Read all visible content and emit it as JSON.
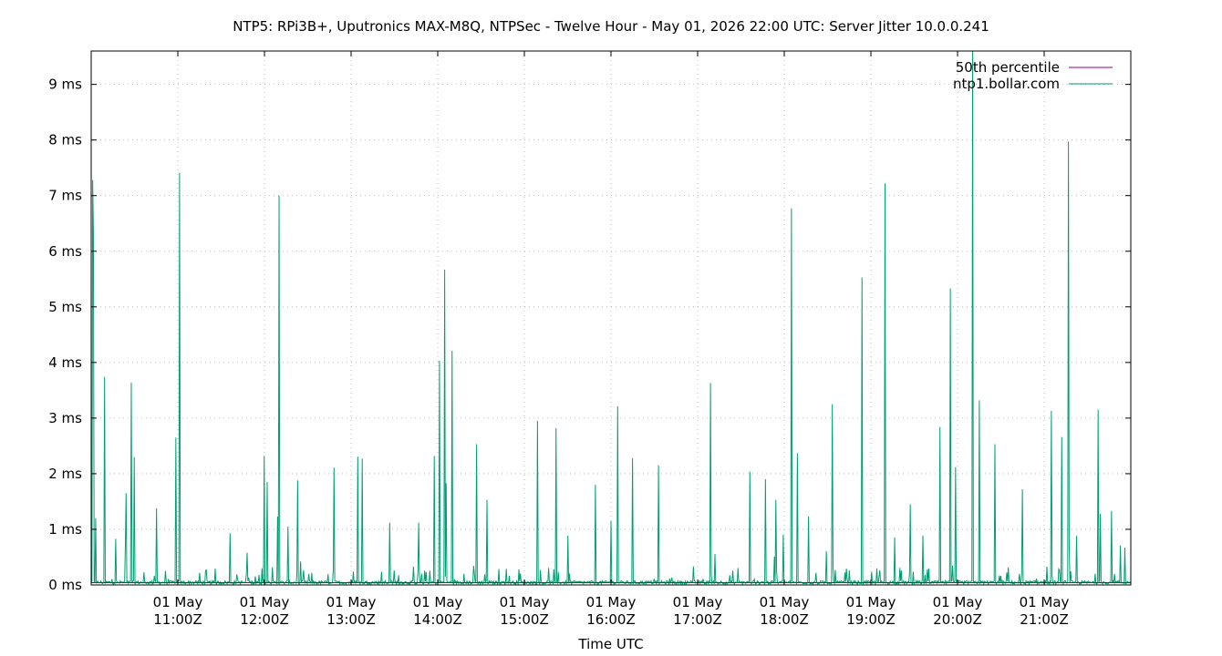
{
  "chart_data": {
    "type": "line",
    "title": "NTP5: RPi3B+, Uputronics MAX-M8Q, NTPSec - Twelve Hour - May 01, 2026 22:00 UTC: Server Jitter 10.0.0.241",
    "xlabel": "Time UTC",
    "ylabel": "",
    "x_range": [
      "2026-05-01T10:00Z",
      "2026-05-01T22:00Z"
    ],
    "ylim": [
      0,
      9.6
    ],
    "y_unit": "ms",
    "grid": true,
    "legend_position": "top-right",
    "y_ticks": [
      {
        "value": 0,
        "label": "0 ms"
      },
      {
        "value": 1,
        "label": "1 ms"
      },
      {
        "value": 2,
        "label": "2 ms"
      },
      {
        "value": 3,
        "label": "3 ms"
      },
      {
        "value": 4,
        "label": "4 ms"
      },
      {
        "value": 5,
        "label": "5 ms"
      },
      {
        "value": 6,
        "label": "6 ms"
      },
      {
        "value": 7,
        "label": "7 ms"
      },
      {
        "value": 8,
        "label": "8 ms"
      },
      {
        "value": 9,
        "label": "9 ms"
      }
    ],
    "x_ticks": [
      {
        "hour": 11,
        "line1": "01 May",
        "line2": "11:00Z"
      },
      {
        "hour": 12,
        "line1": "01 May",
        "line2": "12:00Z"
      },
      {
        "hour": 13,
        "line1": "01 May",
        "line2": "13:00Z"
      },
      {
        "hour": 14,
        "line1": "01 May",
        "line2": "14:00Z"
      },
      {
        "hour": 15,
        "line1": "01 May",
        "line2": "15:00Z"
      },
      {
        "hour": 16,
        "line1": "01 May",
        "line2": "16:00Z"
      },
      {
        "hour": 17,
        "line1": "01 May",
        "line2": "17:00Z"
      },
      {
        "hour": 18,
        "line1": "01 May",
        "line2": "18:00Z"
      },
      {
        "hour": 19,
        "line1": "01 May",
        "line2": "19:00Z"
      },
      {
        "hour": 20,
        "line1": "01 May",
        "line2": "20:00Z"
      },
      {
        "hour": 21,
        "line1": "01 May",
        "line2": "21:00Z"
      }
    ],
    "series": [
      {
        "name": "50th percentile",
        "color": "#94008b",
        "value": 0.04
      },
      {
        "name": "ntp1.bollar.com",
        "color": "#009e73",
        "baseline": 0.05,
        "spikes": [
          {
            "hour": 10.02,
            "value": 7.28
          },
          {
            "hour": 10.03,
            "value": 6.3
          },
          {
            "hour": 10.05,
            "value": 1.2
          },
          {
            "hour": 10.15,
            "value": 3.74
          },
          {
            "hour": 10.28,
            "value": 0.83
          },
          {
            "hour": 10.4,
            "value": 1.65
          },
          {
            "hour": 10.46,
            "value": 3.64
          },
          {
            "hour": 10.5,
            "value": 2.3
          },
          {
            "hour": 10.75,
            "value": 1.38
          },
          {
            "hour": 10.98,
            "value": 2.65
          },
          {
            "hour": 11.02,
            "value": 7.41
          },
          {
            "hour": 11.6,
            "value": 0.93
          },
          {
            "hour": 11.8,
            "value": 0.58
          },
          {
            "hour": 12.0,
            "value": 2.32
          },
          {
            "hour": 12.03,
            "value": 1.85
          },
          {
            "hour": 12.15,
            "value": 1.23
          },
          {
            "hour": 12.17,
            "value": 7.0
          },
          {
            "hour": 12.27,
            "value": 1.05
          },
          {
            "hour": 12.38,
            "value": 1.88
          },
          {
            "hour": 12.8,
            "value": 2.11
          },
          {
            "hour": 13.08,
            "value": 2.31
          },
          {
            "hour": 13.13,
            "value": 2.27
          },
          {
            "hour": 13.45,
            "value": 1.12
          },
          {
            "hour": 13.78,
            "value": 1.12
          },
          {
            "hour": 13.96,
            "value": 2.32
          },
          {
            "hour": 14.02,
            "value": 4.03
          },
          {
            "hour": 14.08,
            "value": 5.67
          },
          {
            "hour": 14.1,
            "value": 1.83
          },
          {
            "hour": 14.17,
            "value": 4.21
          },
          {
            "hour": 14.45,
            "value": 2.53
          },
          {
            "hour": 14.57,
            "value": 1.53
          },
          {
            "hour": 15.15,
            "value": 2.95
          },
          {
            "hour": 15.37,
            "value": 2.82
          },
          {
            "hour": 15.82,
            "value": 1.8
          },
          {
            "hour": 16.0,
            "value": 1.15
          },
          {
            "hour": 16.08,
            "value": 3.21
          },
          {
            "hour": 16.25,
            "value": 2.28
          },
          {
            "hour": 16.55,
            "value": 2.15
          },
          {
            "hour": 17.15,
            "value": 3.63
          },
          {
            "hour": 17.6,
            "value": 2.04
          },
          {
            "hour": 17.78,
            "value": 1.9
          },
          {
            "hour": 17.9,
            "value": 1.53
          },
          {
            "hour": 18.08,
            "value": 6.77
          },
          {
            "hour": 18.15,
            "value": 2.37
          },
          {
            "hour": 18.28,
            "value": 1.23
          },
          {
            "hour": 18.55,
            "value": 3.25
          },
          {
            "hour": 18.9,
            "value": 5.53
          },
          {
            "hour": 19.16,
            "value": 7.22
          },
          {
            "hour": 19.45,
            "value": 1.45
          },
          {
            "hour": 19.8,
            "value": 2.84
          },
          {
            "hour": 19.92,
            "value": 5.33
          },
          {
            "hour": 19.98,
            "value": 2.12
          },
          {
            "hour": 20.17,
            "value": 9.6
          },
          {
            "hour": 20.25,
            "value": 3.32
          },
          {
            "hour": 20.43,
            "value": 2.53
          },
          {
            "hour": 20.75,
            "value": 1.72
          },
          {
            "hour": 21.08,
            "value": 3.13
          },
          {
            "hour": 21.2,
            "value": 2.66
          },
          {
            "hour": 21.28,
            "value": 7.97
          },
          {
            "hour": 21.65,
            "value": 1.28
          },
          {
            "hour": 21.62,
            "value": 3.15
          },
          {
            "hour": 21.78,
            "value": 1.33
          },
          {
            "hour": 21.88,
            "value": 0.71
          }
        ]
      }
    ]
  }
}
